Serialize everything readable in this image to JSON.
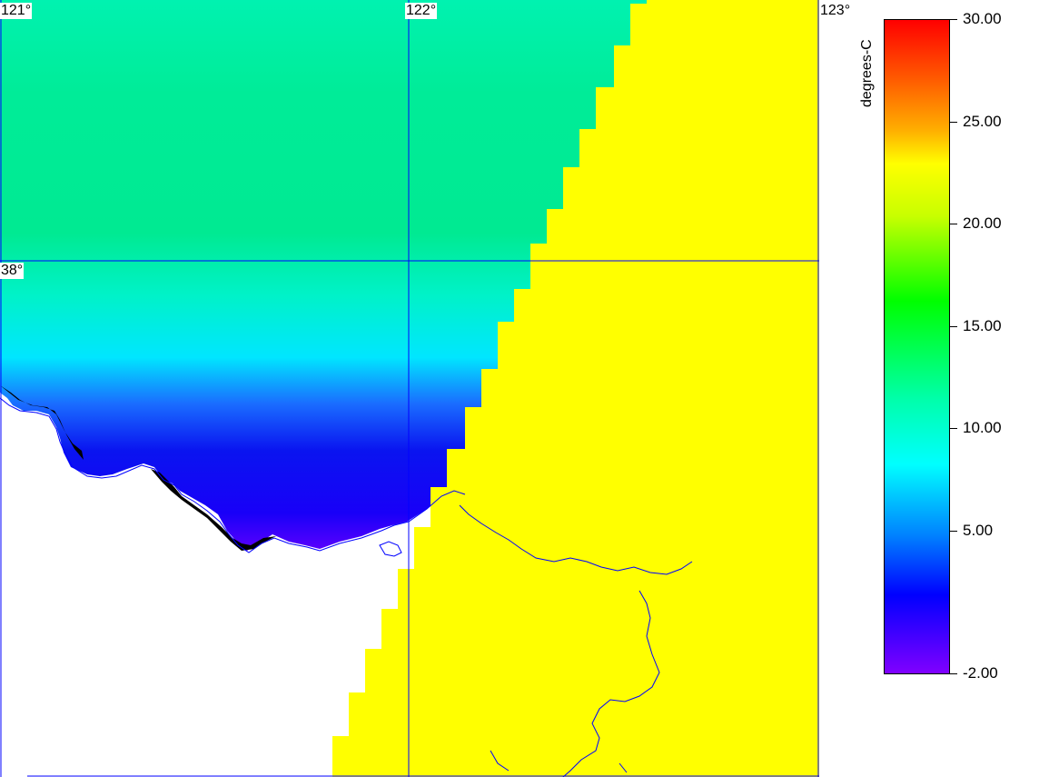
{
  "map": {
    "grid_labels": {
      "lon_121": "121°",
      "lon_122": "122°",
      "lon_123": "123°",
      "lat_38": "38°"
    },
    "colors": {
      "no_data": "#ffff00",
      "land": "#ffffff",
      "coastline": "#0000ff",
      "gridline": "#0000ff",
      "ice_mask": "#000000"
    }
  },
  "legend": {
    "unit": "degrees-C",
    "min": -2,
    "max": 30,
    "ticks": [
      {
        "value": 30,
        "label": "30.00"
      },
      {
        "value": 25,
        "label": "25.00"
      },
      {
        "value": 20,
        "label": "20.00"
      },
      {
        "value": 15,
        "label": "15.00"
      },
      {
        "value": 10,
        "label": "10.00"
      },
      {
        "value": 5,
        "label": "5.00"
      },
      {
        "value": -2,
        "label": "-2.00"
      }
    ]
  }
}
